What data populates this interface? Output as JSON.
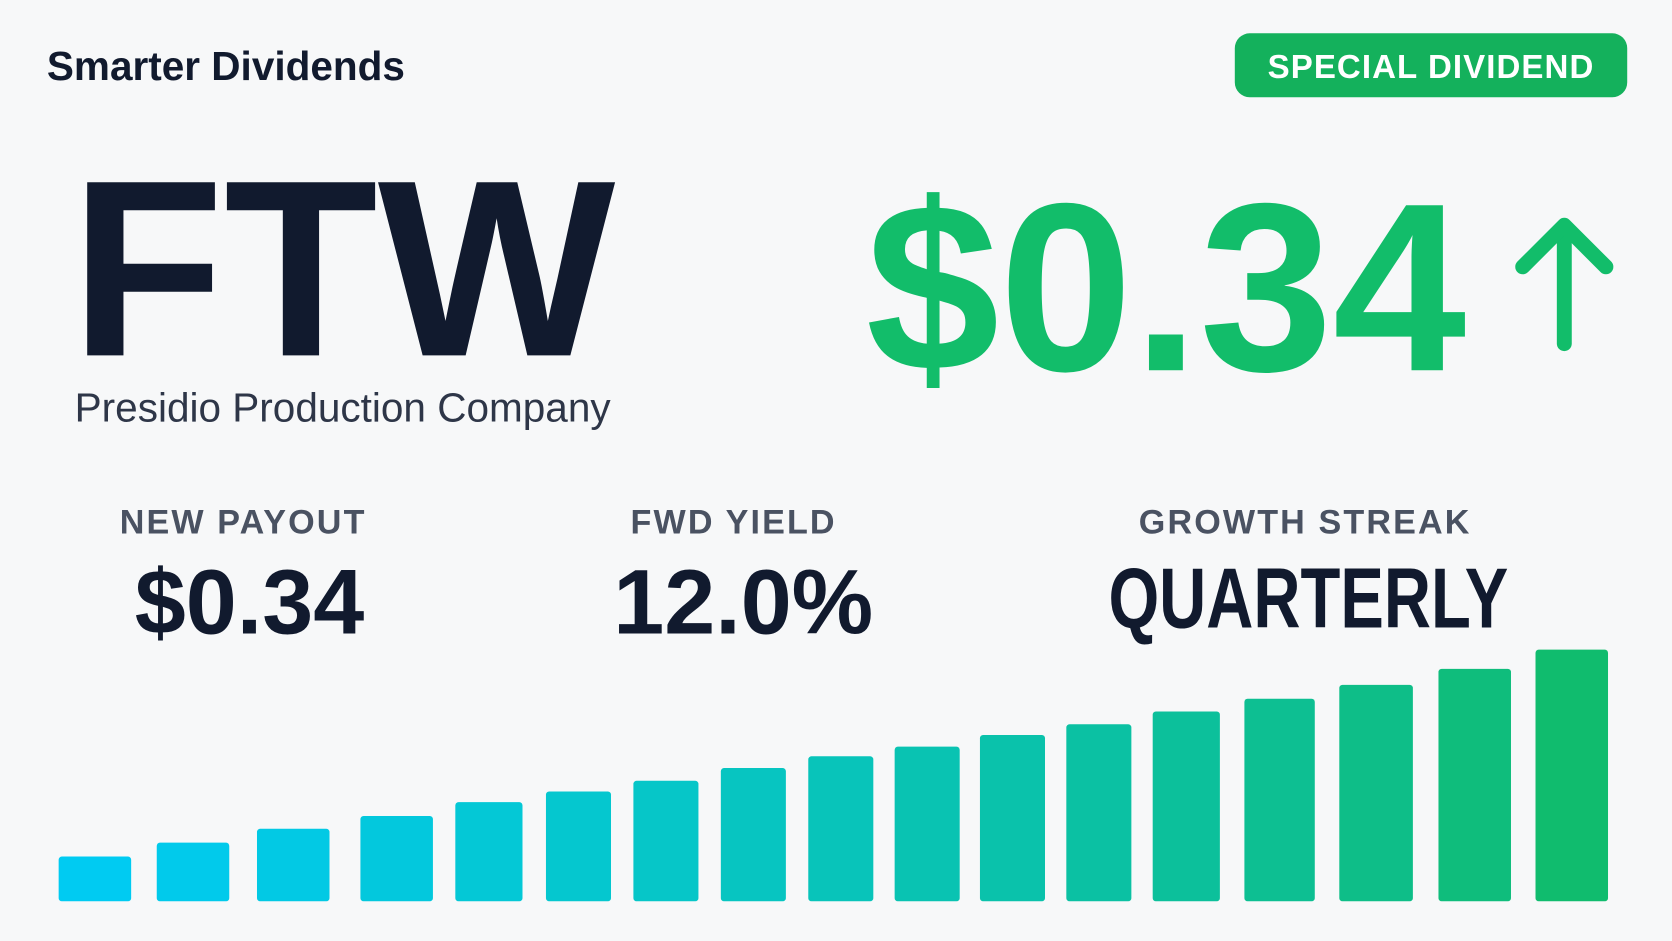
{
  "header": {
    "brand": "Smarter Dividends",
    "badge": "SPECIAL DIVIDEND"
  },
  "ticker": {
    "symbol": "FTW",
    "company": "Presidio Production Company"
  },
  "dividend": {
    "amount": "$0.34"
  },
  "stats": [
    {
      "label": "NEW PAYOUT",
      "value": "$0.34"
    },
    {
      "label": "FWD YIELD",
      "value": "12.0%"
    },
    {
      "label": "GROWTH STREAK",
      "value": "QUARTERLY"
    }
  ]
}
